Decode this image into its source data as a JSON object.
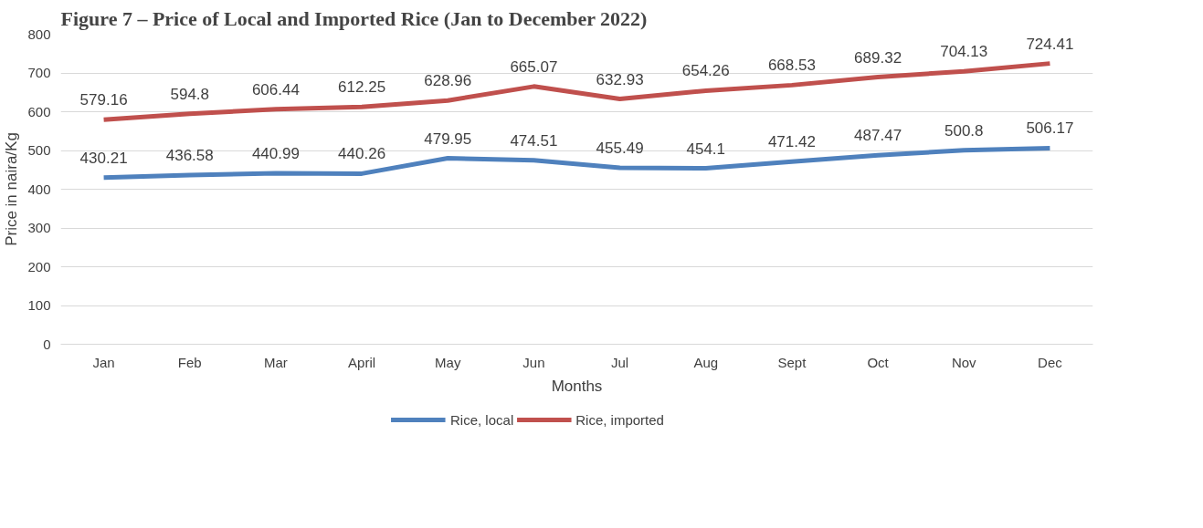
{
  "chart_data": {
    "type": "line",
    "title": "Figure 7 – Price of Local and Imported Rice (Jan to December 2022)",
    "xlabel": "Months",
    "ylabel": "Price in naira/Kg",
    "categories": [
      "Jan",
      "Feb",
      "Mar",
      "April",
      "May",
      "Jun",
      "Jul",
      "Aug",
      "Sept",
      "Oct",
      "Nov",
      "Dec"
    ],
    "series": [
      {
        "name": "Rice, local",
        "color": "#4f81bd",
        "values": [
          430.21,
          436.58,
          440.99,
          440.26,
          479.95,
          474.51,
          455.49,
          454.1,
          471.42,
          487.47,
          500.8,
          506.17
        ]
      },
      {
        "name": "Rice, imported",
        "color": "#c0504d",
        "values": [
          579.16,
          594.8,
          606.44,
          612.25,
          628.96,
          665.07,
          632.93,
          654.26,
          668.53,
          689.32,
          704.13,
          724.41
        ]
      }
    ],
    "ylim": [
      0,
      800
    ],
    "yticks": [
      0,
      100,
      200,
      300,
      400,
      500,
      600,
      700,
      800
    ],
    "grid": "y",
    "legend": "bottom",
    "data_labels": true,
    "marker": "none",
    "line_style": "solid"
  }
}
